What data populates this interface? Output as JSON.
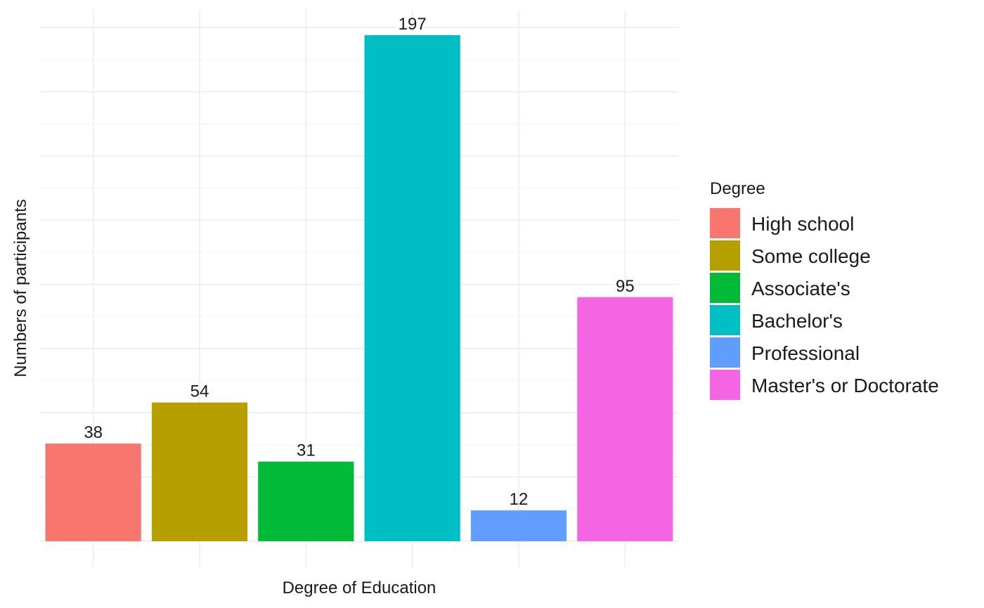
{
  "chart_data": {
    "type": "bar",
    "categories": [
      "High school",
      "Some college",
      "Associate's",
      "Bachelor's",
      "Professional",
      "Master's or Doctorate"
    ],
    "values": [
      38,
      54,
      31,
      197,
      12,
      95
    ],
    "colors": [
      "#F8766D",
      "#B79F00",
      "#00BA38",
      "#00BFC4",
      "#619CFF",
      "#F564E3"
    ],
    "title": "",
    "xlabel": "Degree of Education",
    "ylabel": "Numbers of participants",
    "ylim": [
      -9.85,
      206.85
    ],
    "y_gridlines": [
      0,
      25,
      50,
      75,
      100,
      125,
      150,
      175,
      200
    ],
    "x_tick_labels_shown": false,
    "y_tick_labels_shown": false,
    "grid": true,
    "legend": {
      "title": "Degree",
      "position": "right",
      "entries": [
        "High school",
        "Some college",
        "Associate's",
        "Bachelor's",
        "Professional",
        "Master's or Doctorate"
      ]
    }
  }
}
